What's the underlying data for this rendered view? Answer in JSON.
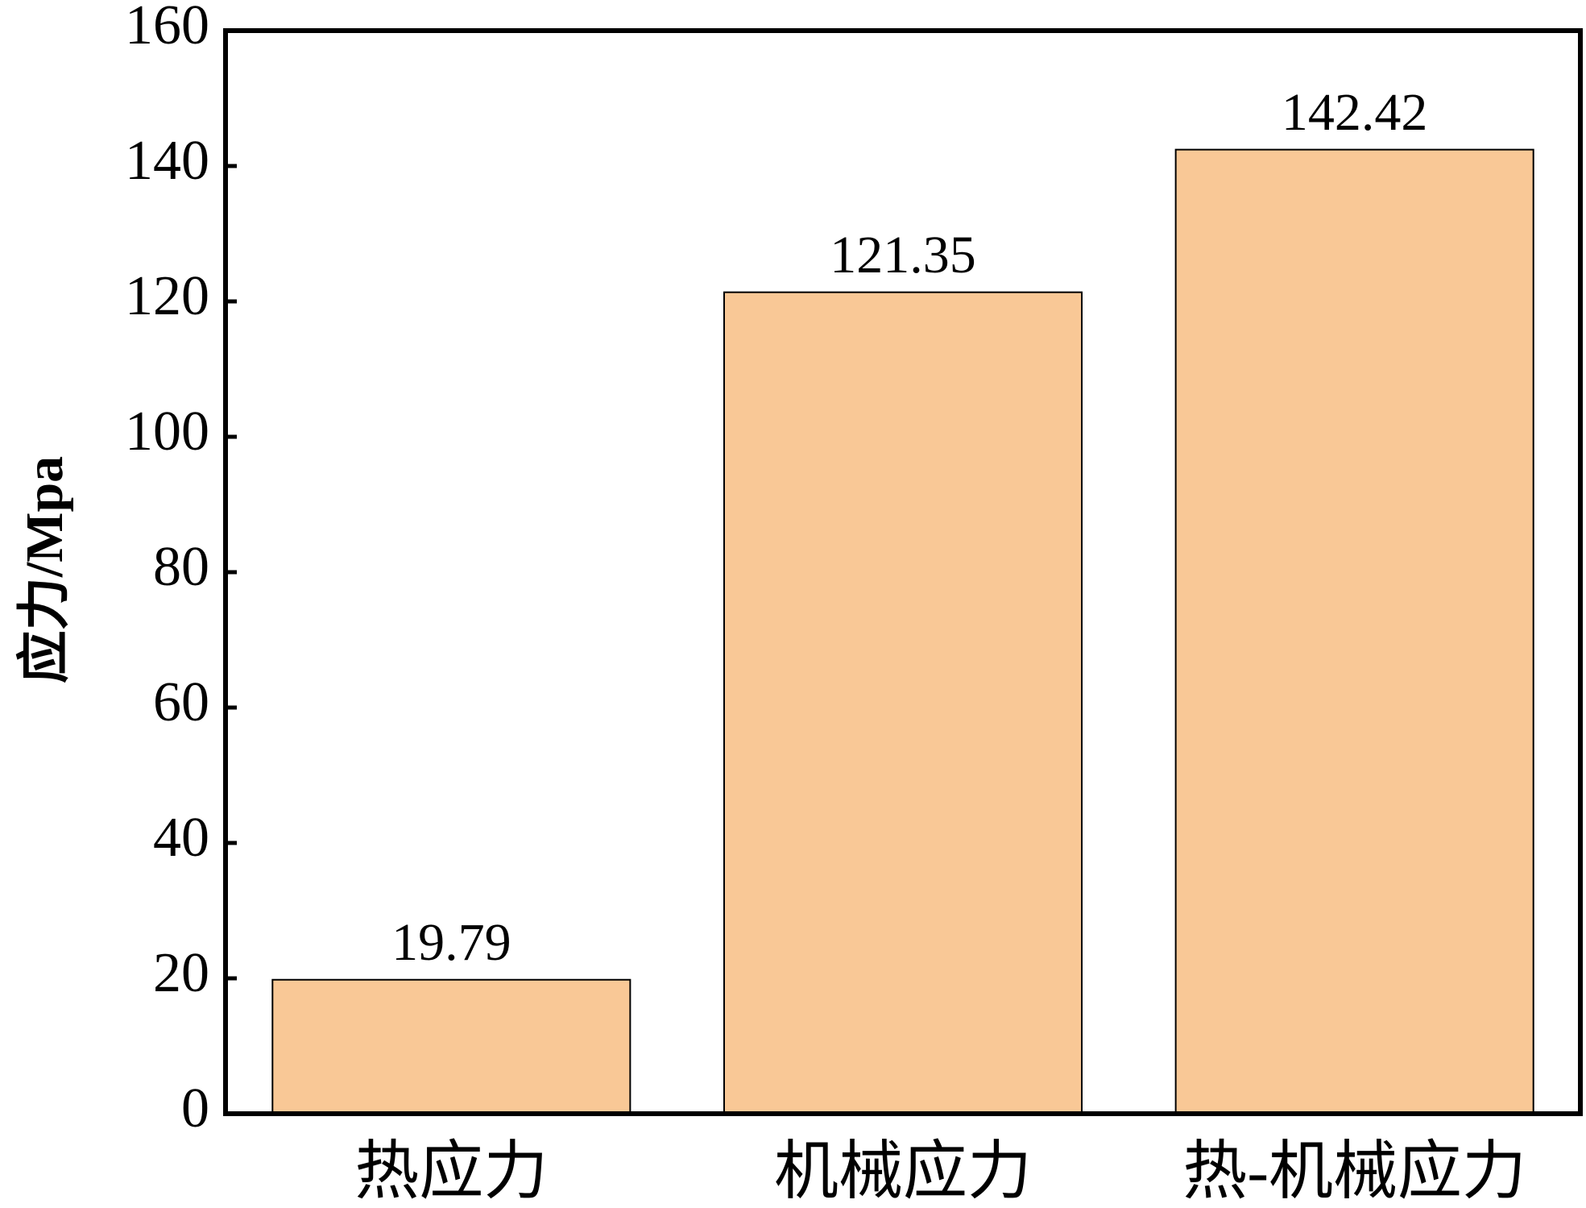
{
  "chart_data": {
    "type": "bar",
    "y_label": "应力/Mpa",
    "categories": [
      "热应力",
      "机械应力",
      "热-机械应力"
    ],
    "values": [
      19.79,
      121.35,
      142.42
    ],
    "color": "#f9c896",
    "ylim": [
      0,
      160
    ],
    "yticks": [
      0,
      20,
      40,
      60,
      80,
      100,
      120,
      140,
      160
    ]
  }
}
